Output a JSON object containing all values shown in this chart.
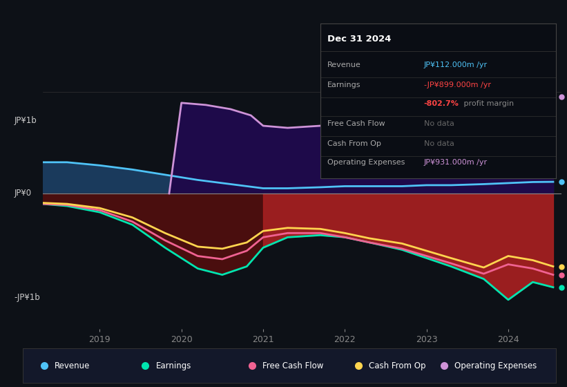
{
  "bg_color": "#0d1117",
  "ylabel_top": "JP¥1b",
  "ylabel_bottom": "-JP¥1b",
  "ylabel_mid": "JP¥0",
  "x_years": [
    2018.3,
    2018.6,
    2019.0,
    2019.4,
    2019.8,
    2020.2,
    2020.5,
    2020.8,
    2021.0,
    2021.3,
    2021.7,
    2022.0,
    2022.3,
    2022.7,
    2023.0,
    2023.3,
    2023.7,
    2024.0,
    2024.3,
    2024.55
  ],
  "revenue": [
    0.3,
    0.3,
    0.27,
    0.23,
    0.18,
    0.13,
    0.1,
    0.07,
    0.05,
    0.05,
    0.06,
    0.07,
    0.07,
    0.07,
    0.08,
    0.08,
    0.09,
    0.1,
    0.11,
    0.112
  ],
  "earnings": [
    -0.1,
    -0.12,
    -0.18,
    -0.3,
    -0.52,
    -0.72,
    -0.78,
    -0.7,
    -0.52,
    -0.42,
    -0.4,
    -0.42,
    -0.47,
    -0.54,
    -0.62,
    -0.7,
    -0.82,
    -1.02,
    -0.85,
    -0.9
  ],
  "free_cash_flow": [
    -0.1,
    -0.11,
    -0.16,
    -0.27,
    -0.45,
    -0.6,
    -0.63,
    -0.55,
    -0.42,
    -0.38,
    -0.38,
    -0.42,
    -0.47,
    -0.53,
    -0.6,
    -0.67,
    -0.77,
    -0.68,
    -0.72,
    -0.78
  ],
  "cash_from_op": [
    -0.09,
    -0.1,
    -0.14,
    -0.23,
    -0.38,
    -0.51,
    -0.53,
    -0.47,
    -0.36,
    -0.33,
    -0.34,
    -0.38,
    -0.43,
    -0.48,
    -0.55,
    -0.62,
    -0.71,
    -0.6,
    -0.64,
    -0.7
  ],
  "op_expenses_x": [
    2019.85,
    2020.0,
    2020.3,
    2020.6,
    2020.85,
    2021.0,
    2021.3,
    2021.7,
    2022.0,
    2022.3,
    2022.7,
    2023.0,
    2023.3,
    2023.7,
    2024.0,
    2024.3,
    2024.55
  ],
  "op_expenses_y": [
    0.0,
    0.87,
    0.85,
    0.81,
    0.75,
    0.65,
    0.63,
    0.65,
    0.68,
    0.72,
    0.78,
    0.82,
    0.87,
    0.95,
    1.02,
    1.08,
    0.93
  ],
  "revenue_color": "#4fc3f7",
  "earnings_color": "#00e5b0",
  "fcf_color": "#f06292",
  "cfop_color": "#ffd54f",
  "opex_color": "#ce93d8",
  "revenue_fill_color": "#1a3a5c",
  "earnings_fill_dark": "#4a0e0e",
  "earnings_fill_bright": "#aa2020",
  "opex_fill_color": "#1e0a4a",
  "x_ticks": [
    2019,
    2020,
    2021,
    2022,
    2023,
    2024
  ],
  "xlim": [
    2018.3,
    2024.65
  ],
  "ylim": [
    -1.3,
    1.3
  ],
  "legend_items": [
    {
      "label": "Revenue",
      "color": "#4fc3f7"
    },
    {
      "label": "Earnings",
      "color": "#00e5b0"
    },
    {
      "label": "Free Cash Flow",
      "color": "#f06292"
    },
    {
      "label": "Cash From Op",
      "color": "#ffd54f"
    },
    {
      "label": "Operating Expenses",
      "color": "#ce93d8"
    }
  ],
  "tooltip": {
    "title": "Dec 31 2024",
    "rows": [
      {
        "label": "Revenue",
        "value": "JP¥112.000m /yr",
        "value_color": "#4fc3f7"
      },
      {
        "label": "Earnings",
        "value": "-JP¥899.000m /yr",
        "value_color": "#ff4444"
      },
      {
        "label": "",
        "value": "-802.7% profit margin",
        "value_color": "#ff6666",
        "pct": "-802.7%",
        "pct_color": "#ff4444",
        "rest": " profit margin",
        "rest_color": "#888888"
      },
      {
        "label": "Free Cash Flow",
        "value": "No data",
        "value_color": "#666666"
      },
      {
        "label": "Cash From Op",
        "value": "No data",
        "value_color": "#666666"
      },
      {
        "label": "Operating Expenses",
        "value": "JP¥931.000m /yr",
        "value_color": "#ce93d8"
      }
    ]
  }
}
